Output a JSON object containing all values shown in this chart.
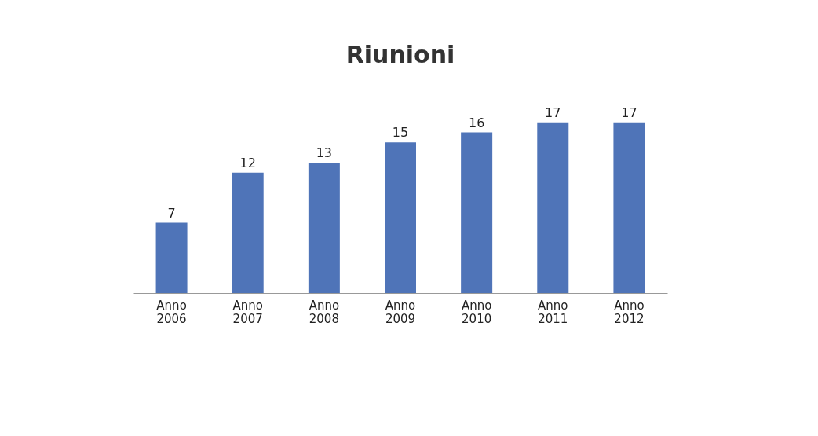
{
  "chart_data": {
    "type": "bar",
    "title": "Riunioni",
    "categories": [
      "Anno 2006",
      "Anno 2007",
      "Anno 2008",
      "Anno 2009",
      "Anno 2010",
      "Anno 2011",
      "Anno 2012"
    ],
    "values": [
      7,
      12,
      13,
      15,
      16,
      17,
      17
    ],
    "color": "#4f74b8",
    "data_labels": true
  }
}
